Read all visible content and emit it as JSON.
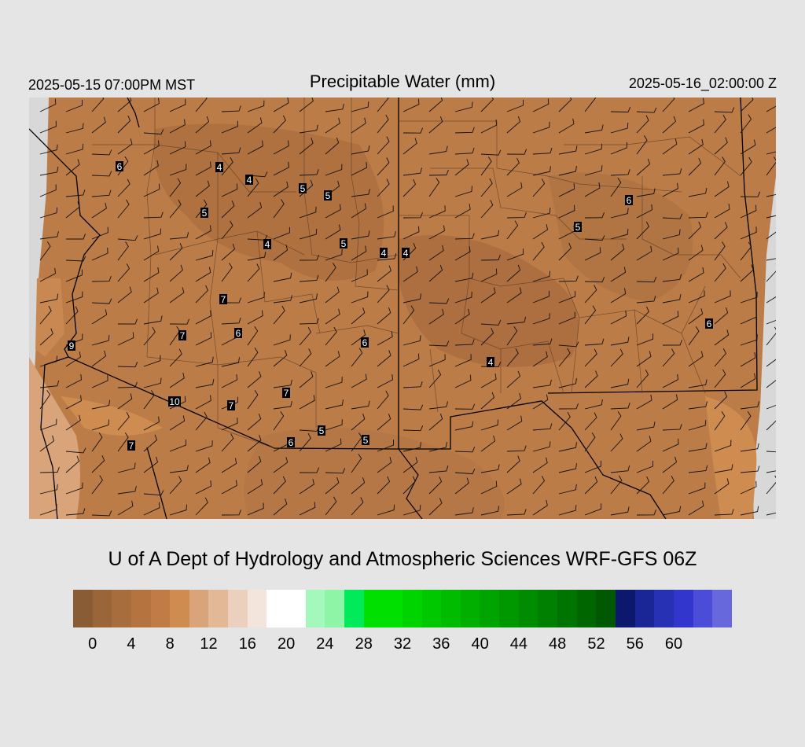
{
  "header": {
    "local_time": "2025-05-15 07:00PM MST",
    "title": "Precipitable Water (mm)",
    "valid_time": "2025-05-16_02:00:00 Z"
  },
  "credit": "U of A Dept of Hydrology and Atmospheric Sciences WRF-GFS 06Z",
  "colorbar": {
    "colors": [
      "#8a5c35",
      "#9a6538",
      "#a86d3c",
      "#b5743f",
      "#c07c44",
      "#cf8c50",
      "#d9a47a",
      "#e2b897",
      "#ead0bd",
      "#f3e5dc",
      "#ffffff",
      "#ffffff",
      "#a5f8bb",
      "#8ef5a6",
      "#00ea5a",
      "#00e000",
      "#00e000",
      "#00d400",
      "#00c800",
      "#00bc00",
      "#00b000",
      "#00a400",
      "#009800",
      "#008c00",
      "#008000",
      "#007400",
      "#006600",
      "#005800",
      "#0c176e",
      "#1a2696",
      "#2631b4",
      "#3336cc",
      "#4b4dd8",
      "#6668dc"
    ],
    "tick_labels": [
      "0",
      "4",
      "8",
      "12",
      "16",
      "20",
      "24",
      "28",
      "32",
      "36",
      "40",
      "44",
      "48",
      "52",
      "56",
      "60"
    ]
  },
  "map": {
    "value_labels": [
      "6",
      "4",
      "4",
      "5",
      "5",
      "5",
      "4",
      "5",
      "4",
      "4",
      "6",
      "5",
      "7",
      "7",
      "6",
      "6",
      "4",
      "6",
      "9",
      "10",
      "7",
      "7",
      "5",
      "5",
      "6",
      "7"
    ]
  }
}
